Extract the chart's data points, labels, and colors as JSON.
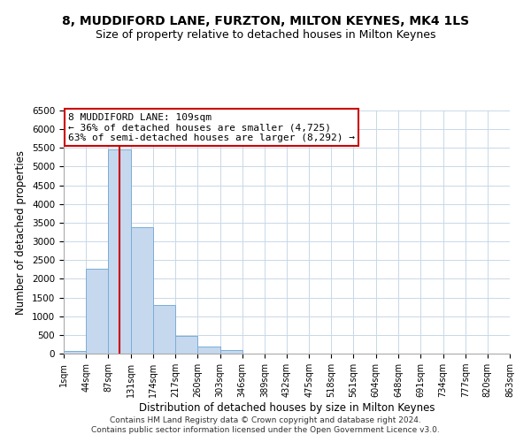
{
  "title": "8, MUDDIFORD LANE, FURZTON, MILTON KEYNES, MK4 1LS",
  "subtitle": "Size of property relative to detached houses in Milton Keynes",
  "xlabel": "Distribution of detached houses by size in Milton Keynes",
  "ylabel": "Number of detached properties",
  "bar_color": "#c5d8ee",
  "bar_edge_color": "#7aaed6",
  "vline_color": "#cc0000",
  "vline_x": 109,
  "bin_edges": [
    1,
    44,
    87,
    131,
    174,
    217,
    260,
    303,
    346,
    389,
    432,
    475,
    518,
    561,
    604,
    648,
    691,
    734,
    777,
    820,
    863
  ],
  "bin_labels": [
    "1sqm",
    "44sqm",
    "87sqm",
    "131sqm",
    "174sqm",
    "217sqm",
    "260sqm",
    "303sqm",
    "346sqm",
    "389sqm",
    "432sqm",
    "475sqm",
    "518sqm",
    "561sqm",
    "604sqm",
    "648sqm",
    "691sqm",
    "734sqm",
    "777sqm",
    "820sqm",
    "863sqm"
  ],
  "bar_heights": [
    60,
    2270,
    5450,
    3380,
    1310,
    480,
    185,
    85,
    0,
    0,
    0,
    0,
    0,
    0,
    0,
    0,
    0,
    0,
    0,
    0
  ],
  "ylim": [
    0,
    6500
  ],
  "yticks": [
    0,
    500,
    1000,
    1500,
    2000,
    2500,
    3000,
    3500,
    4000,
    4500,
    5000,
    5500,
    6000,
    6500
  ],
  "annotation_title": "8 MUDDIFORD LANE: 109sqm",
  "annotation_line1": "← 36% of detached houses are smaller (4,725)",
  "annotation_line2": "63% of semi-detached houses are larger (8,292) →",
  "annotation_box_color": "#ffffff",
  "annotation_box_edge": "#cc0000",
  "footer1": "Contains HM Land Registry data © Crown copyright and database right 2024.",
  "footer2": "Contains public sector information licensed under the Open Government Licence v3.0.",
  "background_color": "#ffffff",
  "grid_color": "#c8d8e8",
  "title_fontsize": 10,
  "subtitle_fontsize": 9
}
